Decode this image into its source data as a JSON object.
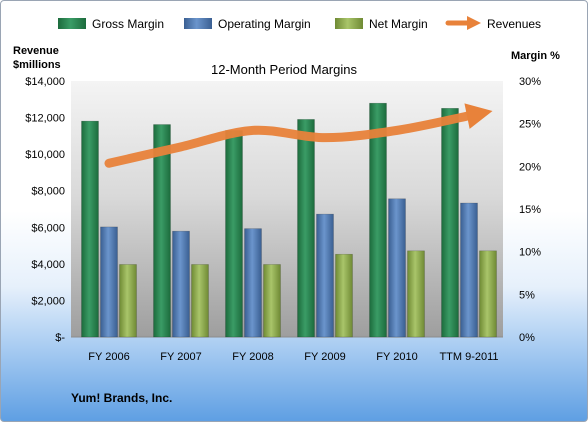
{
  "chart_data": {
    "type": "bar",
    "title": "12-Month Period Margins",
    "left_axis_label": [
      "Revenue",
      "$millions"
    ],
    "right_axis_label": "Margin %",
    "categories": [
      "FY 2006",
      "FY 2007",
      "FY 2008",
      "FY 2009",
      "FY 2010",
      "TTM 9-2011"
    ],
    "left_ticks": [
      "$-",
      "$2,000",
      "$4,000",
      "$6,000",
      "$8,000",
      "$10,000",
      "$12,000",
      "$14,000"
    ],
    "right_ticks": [
      "0%",
      "5%",
      "10%",
      "15%",
      "20%",
      "25%",
      "30%"
    ],
    "left_ylim": [
      0,
      14000
    ],
    "right_ylim": [
      0,
      30
    ],
    "grid": false,
    "legend_position": "top",
    "series": [
      {
        "name": "Gross Margin",
        "kind": "bar",
        "axis": "right",
        "color": "#2e8b57",
        "values": [
          25.3,
          24.9,
          24.2,
          25.5,
          27.4,
          26.8
        ]
      },
      {
        "name": "Operating Margin",
        "kind": "bar",
        "axis": "right",
        "color": "#4f81bd",
        "values": [
          12.9,
          12.4,
          12.7,
          14.4,
          16.2,
          15.7
        ]
      },
      {
        "name": "Net Margin",
        "kind": "bar",
        "axis": "right",
        "color": "#9bbb59",
        "values": [
          8.5,
          8.5,
          8.5,
          9.7,
          10.1,
          10.1
        ]
      },
      {
        "name": "Revenues",
        "kind": "line",
        "axis": "left",
        "color": "#e8823a",
        "values": [
          9500,
          10400,
          11300,
          10900,
          11300,
          12100
        ]
      }
    ]
  },
  "footer_label": "Yum! Brands, Inc."
}
